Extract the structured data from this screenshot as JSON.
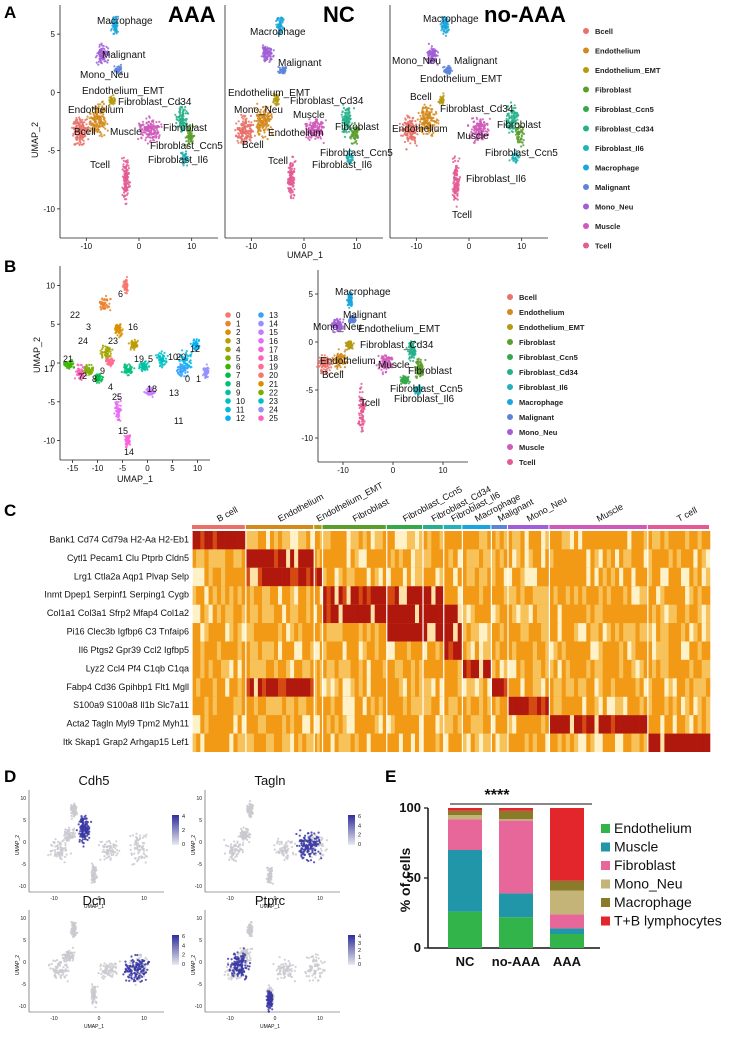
{
  "panels": {
    "a": "A",
    "b": "B",
    "c": "C",
    "d": "D",
    "e": "E"
  },
  "colors": {
    "Bcell": "#e8716a",
    "Endothelium": "#d4891c",
    "Endothelium_EMT": "#b59a12",
    "Fibroblast": "#5a9e2c",
    "Fibroblast_Ccn5": "#37a84a",
    "Fibroblast_Cd34": "#25b08a",
    "Fibroblast_Il6": "#22b2b9",
    "Macrophage": "#1aa6dc",
    "Malignant": "#5c84d8",
    "Mono_Neu": "#a15ed6",
    "Muscle": "#cf5ab8",
    "Tcell": "#e45a94"
  },
  "panel_a": {
    "titles": [
      "AAA",
      "NC",
      "no-AAA"
    ],
    "y_axis_label": "UMAP_2",
    "x_axis_label": "UMAP_1",
    "x_ticks": [
      "-10",
      "0",
      "10"
    ],
    "y_ticks": [
      "5",
      "0",
      "-5",
      "-10"
    ],
    "legend": [
      "Bcell",
      "Endothelium",
      "Endothelium_EMT",
      "Fibroblast",
      "Fibroblast_Ccn5",
      "Fibroblast_Cd34",
      "Fibroblast_Il6",
      "Macrophage",
      "Malignant",
      "Mono_Neu",
      "Muscle",
      "Tcell"
    ],
    "aaa_labels": [
      "Macrophage",
      "Malignant",
      "Mono_Neu",
      "Endothelium_EMT",
      "Fibroblast_Cd34",
      "Endothelium",
      "Bcell",
      "Muscle",
      "Fibroblast",
      "Fibroblast_Ccn5",
      "Fibroblast_Il6",
      "Tcell"
    ],
    "nc_labels": [
      "Macrophage",
      "Malignant",
      "Endothelium_EMT",
      "Fibroblast_Cd34",
      "Mono_Neu",
      "Muscle",
      "Fibroblast",
      "Endothelium",
      "Bcell",
      "Fibroblast_Ccn5",
      "Tcell",
      "Fibroblast_Il6"
    ],
    "noaaa_labels": [
      "Macrophage",
      "Mono_Neu",
      "Malignant",
      "Endothelium_EMT",
      "Bcell",
      "Fibroblast_Cd34",
      "Endothelium",
      "Muscle",
      "Fibroblast",
      "Fibroblast_Ccn5",
      "Fibroblast_Il6",
      "Tcell"
    ]
  },
  "panel_b": {
    "y_axis_label": "UMAP_2",
    "x_axis_label": "UMAP_1",
    "left_x_ticks": [
      "-15",
      "-10",
      "-5",
      "0",
      "5",
      "10"
    ],
    "left_y_ticks": [
      "10",
      "5",
      "0",
      "-5",
      "-10"
    ],
    "right_x_ticks": [
      "-10",
      "0",
      "10"
    ],
    "right_y_ticks": [
      "5",
      "0",
      "-5",
      "-10"
    ],
    "clusters": [
      "0",
      "1",
      "2",
      "3",
      "4",
      "5",
      "6",
      "7",
      "8",
      "9",
      "10",
      "11",
      "12",
      "13",
      "14",
      "15",
      "16",
      "17",
      "18",
      "19",
      "20",
      "21",
      "22",
      "23",
      "24",
      "25"
    ],
    "cluster_colors": [
      "#f8766d",
      "#ea8331",
      "#d89000",
      "#c09b00",
      "#a3a500",
      "#7cae00",
      "#39b600",
      "#00bb4e",
      "#00bf7d",
      "#00c1a3",
      "#00bfc4",
      "#00bae0",
      "#00b0f6",
      "#35a2ff",
      "#9590ff",
      "#c77cff",
      "#e76bf3",
      "#fa62db",
      "#ff62bc",
      "#ff6c91",
      "#f8766d",
      "#d89000",
      "#7cae00",
      "#00bfc4",
      "#9590ff",
      "#ff62bc"
    ],
    "map_labels": [
      "6",
      "22",
      "3",
      "16",
      "24",
      "23",
      "21",
      "2",
      "19",
      "5",
      "10",
      "20",
      "12",
      "17",
      "7",
      "8",
      "4",
      "9",
      "0",
      "1",
      "18",
      "25",
      "13",
      "11",
      "15",
      "14"
    ],
    "right_labels": [
      "Macrophage",
      "Malignant",
      "Mono_Neu",
      "Endothelium_EMT",
      "Fibroblast_Cd34",
      "Endothelium",
      "Muscle",
      "Fibroblast",
      "Bcell",
      "Fibroblast_Ccn5",
      "Fibroblast_Il6",
      "Tcell"
    ],
    "legend": [
      "Bcell",
      "Endothelium",
      "Endothelium_EMT",
      "Fibroblast",
      "Fibroblast_Ccn5",
      "Fibroblast_Cd34",
      "Fibroblast_Il6",
      "Macrophage",
      "Malignant",
      "Mono_Neu",
      "Muscle",
      "Tcell"
    ]
  },
  "panel_c": {
    "cell_types": [
      "B cell",
      "Endothelium",
      "Endothelium_EMT",
      "Fibroblast",
      "Fibroblast_Ccn5",
      "Fibroblast_Cd34",
      "Fibroblast_Il6",
      "Macrophage",
      "Malignant",
      "Mono_Neu",
      "Muscle",
      "T cell"
    ],
    "gene_rows": [
      "Bank1 Cd74 Cd79a H2-Aa H2-Eb1",
      "Cytl1 Pecam1 Clu Ptprb Cldn5",
      "Lrg1 Ctla2a Aqp1 Plvap Selp",
      "Inmt Dpep1 Serpinf1 Serping1 Cygb",
      "Col1a1 Col3a1 Sfrp2 Mfap4 Col1a2",
      "Pi16 Clec3b Igfbp6 C3 Tnfaip6",
      "Il6 Ptgs2 Gpr39 Ccl2 Igfbp5",
      "Lyz2 Ccl4 Pf4 C1qb C1qa",
      "Fabp4 Cd36 Gpihbp1 Flt1 Mgll",
      "S100a9 S100a8 Il1b Slc7a11",
      "Acta2 Tagln Myl9 Tpm2 Myh11",
      "Itk Skap1 Grap2 Arhgap15 Lef1"
    ]
  },
  "panel_d": {
    "genes": [
      "Cdh5",
      "Tagln",
      "Dcn",
      "Ptprc"
    ],
    "y_axis_label": "UMAP_2",
    "x_axis_label": "UMAP_1",
    "scale_ticks": {
      "Cdh5": [
        "4",
        "2",
        "0"
      ],
      "Tagln": [
        "6",
        "4",
        "2",
        "0"
      ],
      "Dcn": [
        "6",
        "4",
        "2",
        "0"
      ],
      "Ptprc": [
        "4",
        "3",
        "2",
        "1",
        "0"
      ]
    },
    "x_ticks": [
      "-10",
      "0",
      "10"
    ],
    "y_ticks": [
      "10",
      "5",
      "0",
      "-5",
      "-10"
    ]
  },
  "chart_data": {
    "type": "bar",
    "stacked": true,
    "title": "",
    "ylabel": "% of cells",
    "xlabel": "",
    "categories": [
      "NC",
      "no-AAA",
      "AAA"
    ],
    "ylim": [
      0,
      100
    ],
    "y_ticks": [
      "0",
      "50",
      "100"
    ],
    "significance": "****",
    "series": [
      {
        "name": "Endothelium",
        "color": "#33b44a",
        "values": [
          26,
          22,
          10
        ]
      },
      {
        "name": "Muscle",
        "color": "#2196a8",
        "values": [
          44,
          17,
          4
        ]
      },
      {
        "name": "Fibroblast",
        "color": "#e8679a",
        "values": [
          22,
          52,
          10
        ]
      },
      {
        "name": "Mono_Neu",
        "color": "#c5b478",
        "values": [
          3,
          1,
          17
        ]
      },
      {
        "name": "Macrophage",
        "color": "#8a7b2a",
        "values": [
          3,
          6,
          7
        ]
      },
      {
        "name": "T+B lymphocytes",
        "color": "#e3262b",
        "values": [
          2,
          2,
          52
        ]
      }
    ]
  }
}
